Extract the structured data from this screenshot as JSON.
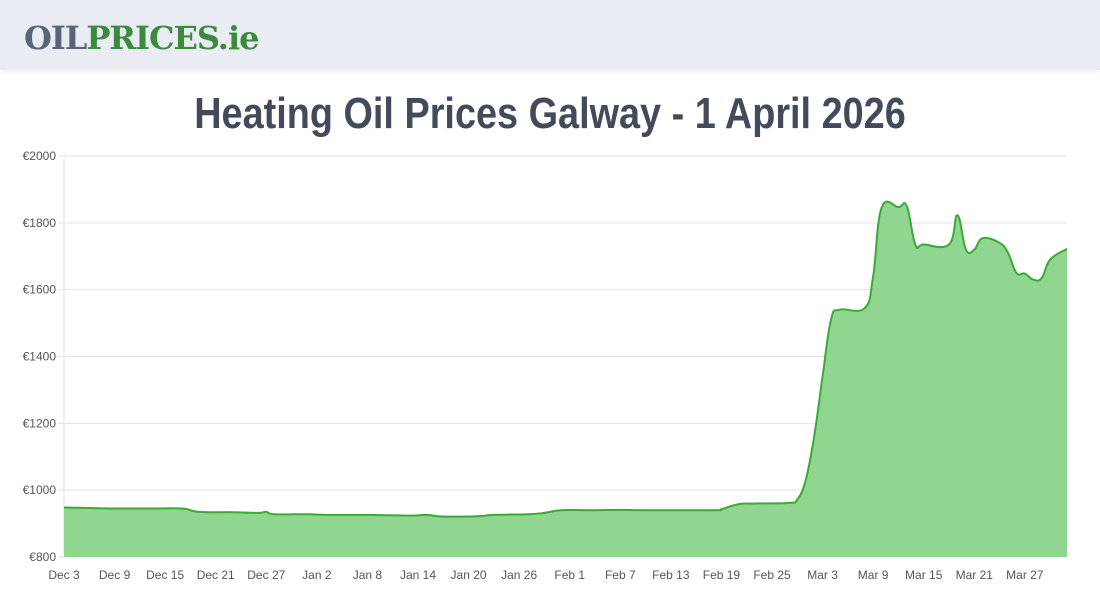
{
  "logo": {
    "part1": "OIL",
    "part2": "PRICES.ie"
  },
  "chart_data": {
    "type": "area",
    "title": "Heating Oil Prices Galway - 1 April 2026",
    "xlabel": "",
    "ylabel": "",
    "ylim": [
      800,
      2000
    ],
    "y_ticks": [
      "€800",
      "€1000",
      "€1200",
      "€1400",
      "€1600",
      "€1800",
      "€2000"
    ],
    "y_tick_values": [
      800,
      1000,
      1200,
      1400,
      1600,
      1800,
      2000
    ],
    "x_ticks": [
      "Dec 3",
      "Dec 9",
      "Dec 15",
      "Dec 21",
      "Dec 27",
      "Jan 2",
      "Jan 8",
      "Jan 14",
      "Jan 20",
      "Jan 26",
      "Feb 1",
      "Feb 7",
      "Feb 13",
      "Feb 19",
      "Feb 25",
      "Mar 3",
      "Mar 9",
      "Mar 15",
      "Mar 21",
      "Mar 27"
    ],
    "x_range": [
      "Dec 3",
      "Apr 1"
    ],
    "grid": "horizontal",
    "line_color": "#3aaa35",
    "fill_color": "#90d690",
    "x": [
      "Dec 3",
      "Dec 7",
      "Dec 9",
      "Dec 13",
      "Dec 17",
      "Dec 19",
      "Dec 23",
      "Dec 26",
      "Dec 27",
      "Dec 28",
      "Jan 1",
      "Jan 3",
      "Jan 8",
      "Jan 13",
      "Jan 15",
      "Jan 17",
      "Jan 21",
      "Jan 23",
      "Jan 27",
      "Jan 29",
      "Jan 31",
      "Feb 4",
      "Feb 7",
      "Feb 10",
      "Feb 18",
      "Feb 19",
      "Feb 21",
      "Feb 23",
      "Feb 27",
      "Feb 28",
      "Mar 1",
      "Mar 2",
      "Mar 3",
      "Mar 4",
      "Mar 5",
      "Mar 8",
      "Mar 9",
      "Mar 10",
      "Mar 12",
      "Mar 13",
      "Mar 14",
      "Mar 15",
      "Mar 18",
      "Mar 19",
      "Mar 20",
      "Mar 21",
      "Mar 22",
      "Mar 24",
      "Mar 25",
      "Mar 26",
      "Mar 27",
      "Mar 28",
      "Mar 29",
      "Mar 30",
      "Apr 1"
    ],
    "values": [
      948,
      946,
      945,
      945,
      945,
      935,
      934,
      932,
      935,
      928,
      928,
      926,
      926,
      924,
      926,
      921,
      922,
      926,
      928,
      932,
      940,
      940,
      941,
      940,
      940,
      943,
      958,
      960,
      962,
      972,
      1030,
      1160,
      1340,
      1510,
      1540,
      1545,
      1640,
      1845,
      1847,
      1850,
      1735,
      1735,
      1735,
      1823,
      1720,
      1720,
      1754,
      1740,
      1710,
      1650,
      1648,
      1630,
      1635,
      1690,
      1722
    ]
  }
}
